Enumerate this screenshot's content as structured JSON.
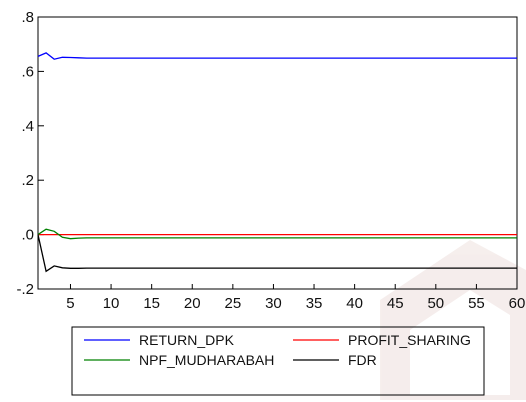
{
  "chart_data": {
    "type": "line",
    "title": "",
    "xlabel": "",
    "ylabel": "",
    "xlim": [
      1,
      60
    ],
    "ylim": [
      -0.2,
      0.8
    ],
    "yticks": [
      -0.2,
      0.0,
      0.2,
      0.4,
      0.6,
      0.8
    ],
    "ytick_labels": [
      "-.2",
      ".0",
      ".2",
      ".4",
      ".6",
      ".8"
    ],
    "xticks": [
      5,
      10,
      15,
      20,
      25,
      30,
      35,
      40,
      45,
      50,
      55,
      60
    ],
    "xtick_labels": [
      "5",
      "10",
      "15",
      "20",
      "25",
      "30",
      "35",
      "40",
      "45",
      "50",
      "55",
      "60"
    ],
    "grid": false,
    "legend_position": "bottom-center",
    "series": [
      {
        "name": "RETURN_DPK",
        "color": "#0000ff",
        "points": [
          [
            1,
            0.655
          ],
          [
            2,
            0.668
          ],
          [
            3,
            0.645
          ],
          [
            4,
            0.652
          ],
          [
            5,
            0.651
          ],
          [
            6,
            0.65
          ],
          [
            7,
            0.649
          ],
          [
            60,
            0.649
          ]
        ]
      },
      {
        "name": "PROFIT_SHARING",
        "color": "#ff0000",
        "points": [
          [
            1,
            0.0
          ],
          [
            60,
            0.0
          ]
        ]
      },
      {
        "name": "NPF_MUDHARABAH",
        "color": "#008000",
        "points": [
          [
            1,
            0.0
          ],
          [
            2,
            0.02
          ],
          [
            3,
            0.012
          ],
          [
            4,
            -0.01
          ],
          [
            5,
            -0.015
          ],
          [
            6,
            -0.013
          ],
          [
            7,
            -0.012
          ],
          [
            60,
            -0.012
          ]
        ]
      },
      {
        "name": "FDR",
        "color": "#000000",
        "points": [
          [
            1,
            0.0
          ],
          [
            2,
            -0.135
          ],
          [
            3,
            -0.115
          ],
          [
            4,
            -0.122
          ],
          [
            5,
            -0.124
          ],
          [
            6,
            -0.124
          ],
          [
            7,
            -0.123
          ],
          [
            60,
            -0.123
          ]
        ]
      }
    ]
  }
}
